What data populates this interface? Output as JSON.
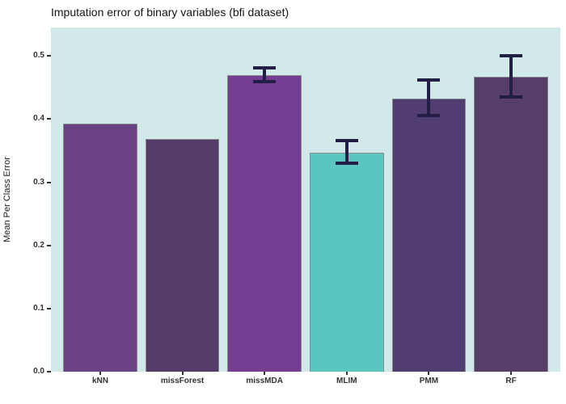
{
  "chart_data": {
    "type": "bar",
    "title": "Imputation error of binary variables (bfi dataset)",
    "xlabel": "",
    "ylabel": "Mean Per Class Error",
    "categories": [
      "kNN",
      "missForest",
      "missMDA",
      "MLIM",
      "PMM",
      "RF"
    ],
    "values": [
      0.393,
      0.369,
      0.47,
      0.347,
      0.433,
      0.467
    ],
    "error_bars": [
      null,
      null,
      {
        "min": 0.457,
        "max": 0.484
      },
      {
        "min": 0.327,
        "max": 0.368
      },
      {
        "min": 0.403,
        "max": 0.464
      },
      {
        "min": 0.432,
        "max": 0.503
      }
    ],
    "bar_colors": [
      "#6a4182",
      "#533b6a",
      "#753e92",
      "#5ac6bf",
      "#523d70",
      "#573e68"
    ],
    "bar_border_color": "#8a8a8a",
    "error_bar_color": "#221e45",
    "panel_background": "#d2e9e9",
    "y_ticks": [
      "0.0",
      "0.1",
      "0.2",
      "0.3",
      "0.4",
      "0.5"
    ],
    "ylim": [
      0,
      0.545
    ],
    "grid": false,
    "legend": "none"
  }
}
